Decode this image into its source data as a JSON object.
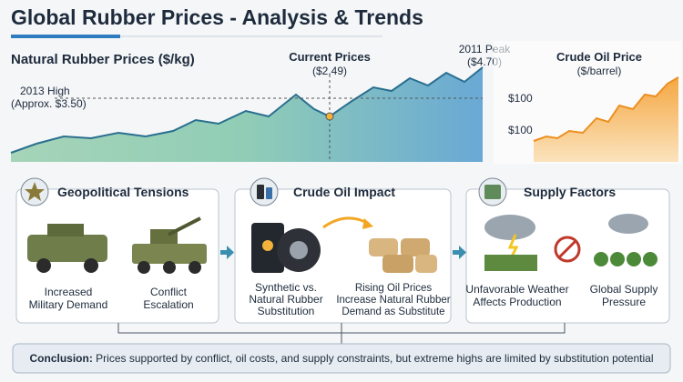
{
  "header": {
    "title": "Global Rubber Prices - Analysis & Trends"
  },
  "rubber_chart": {
    "title": "Natural Rubber Prices ($/kg)",
    "current": [
      "Current Prices",
      "($2.49)"
    ],
    "peak": [
      "2011 Peak",
      "($4.70)"
    ],
    "high": [
      "2013 High",
      "(Approx. $3.50)"
    ]
  },
  "oil_chart": {
    "title": [
      "Crude Oil Price",
      "($/barrel)"
    ],
    "labels": [
      "$100",
      "$100"
    ]
  },
  "panels": [
    {
      "title": "Geopolitical Tensions",
      "items": [
        [
          "Increased",
          "Military Demand"
        ],
        [
          "Conflict",
          "Escalation"
        ]
      ]
    },
    {
      "title": "Crude Oil Impact",
      "items": [
        [
          "Synthetic vs.",
          "Natural Rubber",
          "Substitution"
        ],
        [
          "Rising Oil Prices",
          "Increase Natural Rubber",
          "Demand as Substitute"
        ]
      ]
    },
    {
      "title": "Supply Factors",
      "items": [
        [
          "Unfavorable Weather",
          "Affects Production"
        ],
        [
          "Global Supply",
          "Pressure"
        ]
      ]
    }
  ],
  "conclusion": {
    "label": "Conclusion:",
    "text": "Prices supported by conflict, oil costs, and supply constraints, but extreme highs are limited by substitution potential"
  }
}
